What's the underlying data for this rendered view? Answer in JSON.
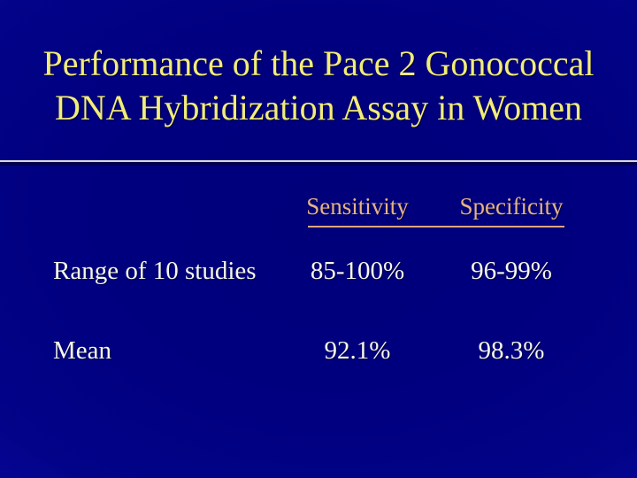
{
  "slide": {
    "title": {
      "line1": "Performance of the Pace 2 Gonococcal",
      "line2": "DNA Hybridization Assay in Women"
    },
    "table": {
      "headers": {
        "sensitivity": "Sensitivity",
        "specificity": "Specificity"
      },
      "rows": [
        {
          "label": "Range of 10 studies",
          "sensitivity": "85-100%",
          "specificity": "96-99%"
        },
        {
          "label": "Mean",
          "sensitivity": "92.1%",
          "specificity": "98.3%"
        }
      ]
    },
    "colors": {
      "background_center": "#00007a",
      "background_edge": "#0a0aaa",
      "title_text": "#f2ec7a",
      "header_text": "#e4b389",
      "header_underline": "#dca57d",
      "body_text": "#f7f7ee",
      "divider_line": "#d9d9d9",
      "divider_shadow": "#000050"
    }
  }
}
